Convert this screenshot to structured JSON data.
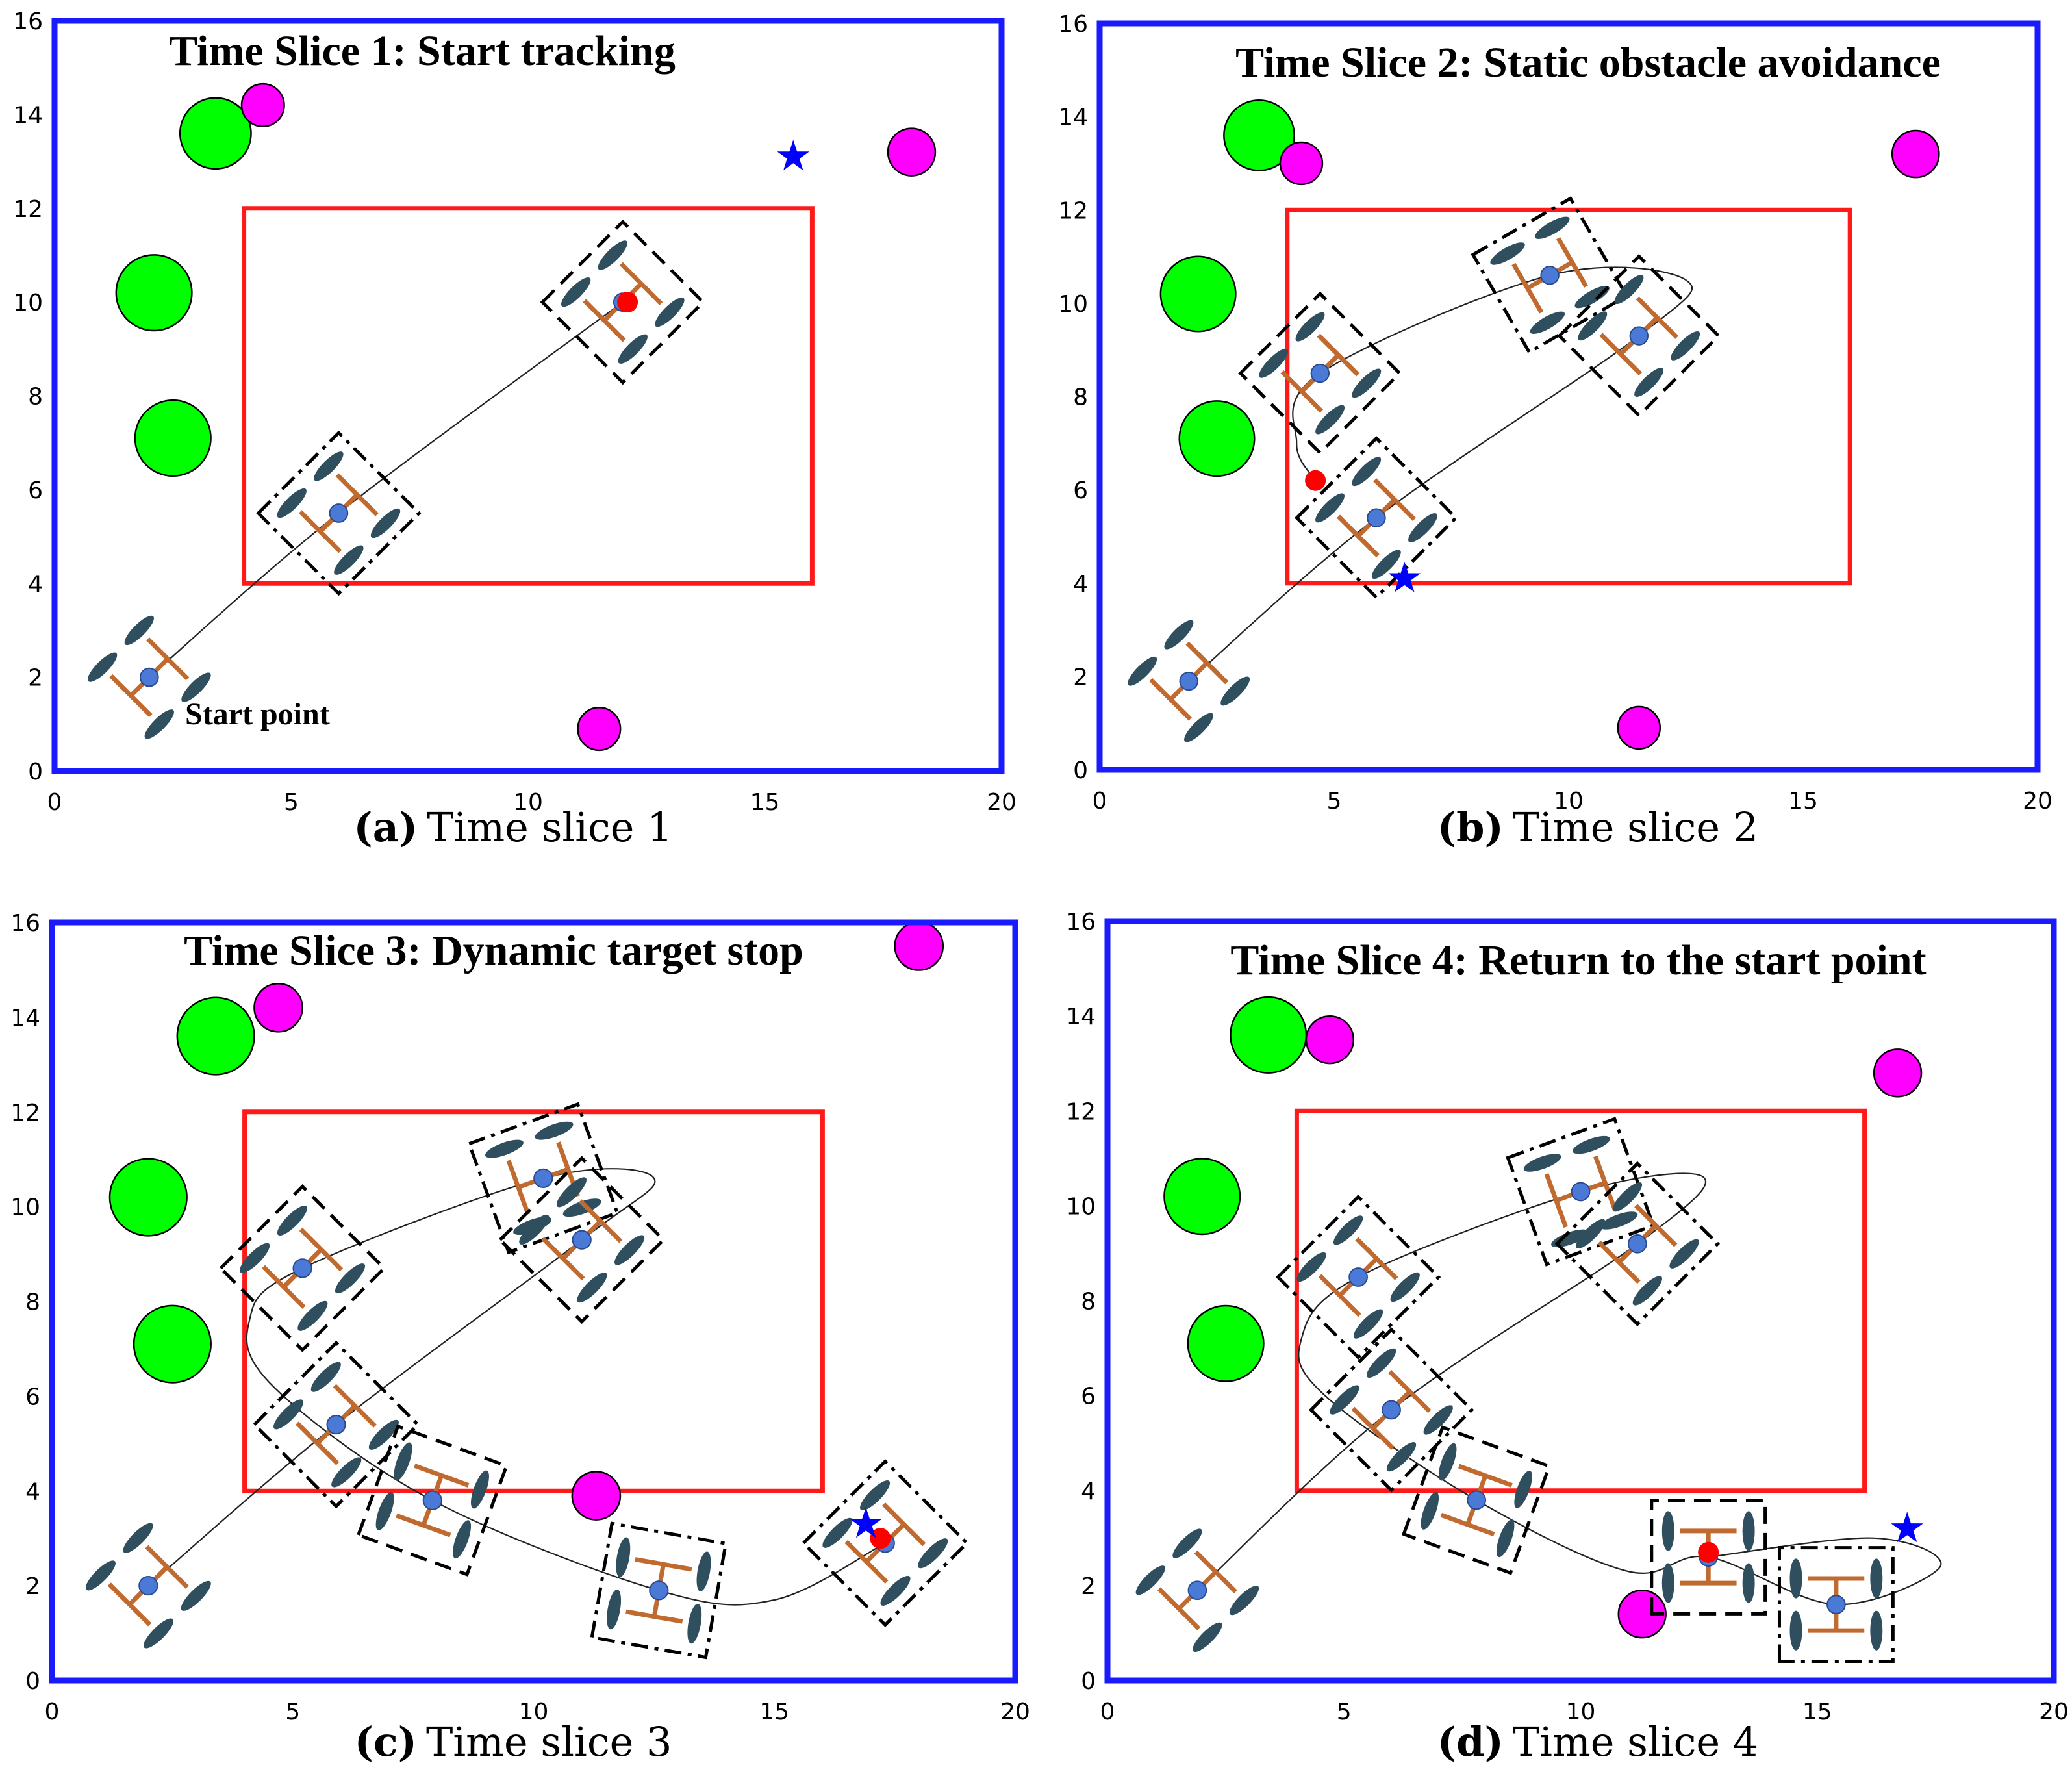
{
  "axes": {
    "x_range": [
      0,
      20
    ],
    "y_range": [
      0,
      16
    ],
    "x_ticks": [
      "0",
      "5",
      "10",
      "15",
      "20"
    ],
    "y_ticks": [
      "0",
      "2",
      "4",
      "6",
      "8",
      "10",
      "12",
      "14",
      "16"
    ],
    "y_ticks_panel_b": [
      "0",
      "2",
      "4",
      "6",
      "8",
      "10",
      "12",
      "14",
      "16"
    ]
  },
  "colors": {
    "border": "#1a1aff",
    "region": "#ff1a1a",
    "static_obstacle": "#00ff00",
    "dynamic_obstacle": "#ff00ff",
    "target": "#0000ff",
    "point": "#ff0000",
    "robot_axle": "#c06a30",
    "robot_wheel": "#2f4f5f",
    "robot_center": "#4a7ad6"
  },
  "panels": [
    {
      "id": "a",
      "title": "Time Slice 1: Start tracking",
      "caption_letter": "(a)",
      "caption_text": "Time slice 1",
      "annotation": "Start point",
      "region": [
        4,
        4,
        16,
        12
      ],
      "static_obstacles": [
        [
          3.4,
          13.6,
          0.75
        ],
        [
          2.1,
          10.2,
          0.8
        ],
        [
          2.5,
          7.1,
          0.8
        ]
      ],
      "dynamic_obstacles": [
        [
          4.4,
          14.2,
          0.45
        ],
        [
          18.1,
          13.2,
          0.5
        ],
        [
          11.5,
          0.9,
          0.45
        ]
      ],
      "targets": [
        [
          15.6,
          13.1
        ]
      ],
      "points": [
        [
          12.1,
          10.0
        ]
      ],
      "robots": [
        [
          2.0,
          2.0,
          45,
          "none"
        ],
        [
          6.0,
          5.5,
          45,
          "dashdot"
        ],
        [
          12.0,
          10.0,
          45,
          "dashed"
        ]
      ],
      "path": [
        [
          2.0,
          2.0
        ],
        [
          6.0,
          5.5
        ],
        [
          12.0,
          10.0
        ]
      ]
    },
    {
      "id": "b",
      "title": "Time Slice 2: Static obstacle avoidance",
      "caption_letter": "(b)",
      "caption_text": "Time slice 2",
      "region": [
        4,
        4,
        16,
        12
      ],
      "static_obstacles": [
        [
          3.4,
          13.6,
          0.75
        ],
        [
          2.1,
          10.2,
          0.8
        ],
        [
          2.5,
          7.1,
          0.8
        ]
      ],
      "dynamic_obstacles": [
        [
          4.3,
          13.0,
          0.45
        ],
        [
          17.4,
          13.2,
          0.5
        ],
        [
          11.5,
          0.9,
          0.45
        ]
      ],
      "targets": [
        [
          6.5,
          4.1
        ]
      ],
      "points": [
        [
          4.6,
          6.2
        ]
      ],
      "robots": [
        [
          1.9,
          1.9,
          45,
          "none"
        ],
        [
          5.9,
          5.4,
          45,
          "dashdot"
        ],
        [
          9.6,
          10.6,
          30,
          "dashdot"
        ],
        [
          11.5,
          9.3,
          45,
          "dashed"
        ],
        [
          4.7,
          8.5,
          45,
          "dashed"
        ]
      ],
      "path": [
        [
          1.9,
          1.9
        ],
        [
          5.9,
          5.4
        ],
        [
          11.5,
          9.3
        ],
        [
          12.5,
          10.5
        ],
        [
          9.6,
          10.6
        ],
        [
          4.7,
          8.5
        ],
        [
          4.2,
          7.0
        ],
        [
          4.6,
          6.2
        ]
      ]
    },
    {
      "id": "c",
      "title": "Time Slice 3: Dynamic target stop",
      "caption_letter": "(c)",
      "caption_text": "Time slice 3",
      "region": [
        4,
        4,
        16,
        12
      ],
      "static_obstacles": [
        [
          3.4,
          13.6,
          0.8
        ],
        [
          2.0,
          10.2,
          0.8
        ],
        [
          2.5,
          7.1,
          0.8
        ]
      ],
      "dynamic_obstacles": [
        [
          4.7,
          14.2,
          0.5
        ],
        [
          18.0,
          15.5,
          0.5
        ],
        [
          11.3,
          3.9,
          0.5
        ]
      ],
      "targets": [
        [
          16.9,
          3.3
        ]
      ],
      "points": [
        [
          17.2,
          3.0
        ]
      ],
      "robots": [
        [
          2.0,
          2.0,
          45,
          "none"
        ],
        [
          5.9,
          5.4,
          45,
          "dashdot"
        ],
        [
          10.2,
          10.6,
          20,
          "dashdot"
        ],
        [
          11.0,
          9.3,
          45,
          "dashed"
        ],
        [
          5.2,
          8.7,
          45,
          "dashed"
        ],
        [
          7.9,
          3.8,
          70,
          "dashed"
        ],
        [
          12.6,
          1.9,
          80,
          "dashdot"
        ],
        [
          17.3,
          2.9,
          45,
          "dashdot"
        ]
      ],
      "path": [
        [
          2.0,
          2.0
        ],
        [
          5.9,
          5.4
        ],
        [
          11.0,
          9.3
        ],
        [
          12.5,
          10.6
        ],
        [
          10.2,
          10.6
        ],
        [
          5.2,
          8.7
        ],
        [
          4.1,
          7.6
        ],
        [
          4.6,
          6.2
        ],
        [
          7.9,
          3.8
        ],
        [
          12.6,
          1.9
        ],
        [
          15.0,
          1.7
        ],
        [
          17.3,
          2.9
        ]
      ]
    },
    {
      "id": "d",
      "title": "Time Slice 4: Return to the start point",
      "caption_letter": "(d)",
      "caption_text": "Time slice 4",
      "region": [
        4,
        4,
        16,
        12
      ],
      "static_obstacles": [
        [
          3.4,
          13.6,
          0.8
        ],
        [
          2.0,
          10.2,
          0.8
        ],
        [
          2.5,
          7.1,
          0.8
        ]
      ],
      "dynamic_obstacles": [
        [
          4.7,
          13.5,
          0.5
        ],
        [
          16.7,
          12.8,
          0.5
        ],
        [
          11.3,
          1.4,
          0.5
        ]
      ],
      "targets": [
        [
          16.9,
          3.2
        ]
      ],
      "points": [
        [
          12.7,
          2.7
        ]
      ],
      "robots": [
        [
          1.9,
          1.9,
          45,
          "none"
        ],
        [
          6.0,
          5.7,
          45,
          "dashdot"
        ],
        [
          10.0,
          10.3,
          20,
          "dashdot"
        ],
        [
          11.2,
          9.2,
          45,
          "dashdot"
        ],
        [
          5.3,
          8.5,
          45,
          "dashdot"
        ],
        [
          7.8,
          3.8,
          70,
          "dashed"
        ],
        [
          12.7,
          2.6,
          90,
          "dashed"
        ],
        [
          15.4,
          1.6,
          90,
          "dashdot"
        ]
      ],
      "path": [
        [
          1.9,
          1.9
        ],
        [
          6.0,
          5.7
        ],
        [
          11.2,
          9.2
        ],
        [
          12.6,
          10.6
        ],
        [
          10.0,
          10.3
        ],
        [
          5.3,
          8.5
        ],
        [
          4.1,
          7.2
        ],
        [
          4.6,
          6.0
        ],
        [
          7.8,
          3.8
        ],
        [
          11.0,
          2.3
        ],
        [
          12.7,
          2.6
        ],
        [
          15.4,
          1.6
        ],
        [
          17.6,
          2.4
        ],
        [
          16.2,
          3.0
        ],
        [
          12.7,
          2.6
        ]
      ]
    }
  ]
}
